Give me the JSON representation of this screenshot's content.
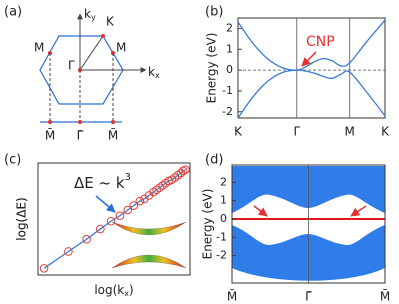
{
  "diagram": {
    "panel_label": "(a)",
    "kx": {
      "base": "k",
      "sub": "x"
    },
    "ky": {
      "base": "k",
      "sub": "y"
    },
    "points": [
      "Γ",
      "K",
      "M",
      "M"
    ],
    "projected": [
      "M̄",
      "Γ̄",
      "M̄"
    ]
  },
  "chart_data": [
    {
      "type": "line",
      "panel_label": "(b)",
      "ylabel": "Energy (eV)",
      "annotation": "CNP",
      "xlim": [
        0,
        2.5
      ],
      "xticks": [
        {
          "value": 0,
          "label": "K"
        },
        {
          "value": 1,
          "label": "Γ"
        },
        {
          "value": 1.9,
          "label": "M"
        },
        {
          "value": 2.5,
          "label": "K"
        }
      ],
      "ylim": [
        -2.3,
        2.5
      ],
      "yticks": [
        -2,
        -1,
        0,
        1,
        2
      ],
      "x": [
        0,
        0.25,
        0.5,
        0.75,
        1,
        1.15,
        1.3,
        1.45,
        1.6,
        1.75,
        1.9,
        2.2,
        2.5
      ],
      "series": [
        {
          "color": "#3a7bd5",
          "values": [
            2.3,
            1.3,
            0.55,
            0.12,
            0,
            0.15,
            0.4,
            0.55,
            0.45,
            0.2,
            0.35,
            1.4,
            2.4
          ]
        },
        {
          "color": "#3a7bd5",
          "values": [
            -2.3,
            -1.3,
            -0.55,
            -0.12,
            0,
            -0.05,
            -0.15,
            -0.3,
            -0.4,
            -0.2,
            -0.1,
            -1.1,
            -2.2
          ]
        }
      ]
    },
    {
      "type": "scatter",
      "panel_label": "(c)",
      "xlabel": [
        "log(k",
        "x",
        ")"
      ],
      "ylabel": "log(ΔE)",
      "annotation": [
        "ΔE ~ k",
        "3"
      ],
      "xlim": [
        0,
        1
      ],
      "ylim": [
        0,
        1
      ],
      "color": "#e0403a",
      "line_color": "#3a7bd5",
      "x": [
        0.04,
        0.2,
        0.32,
        0.41,
        0.48,
        0.54,
        0.59,
        0.63,
        0.67,
        0.7,
        0.73,
        0.76,
        0.78,
        0.8,
        0.82,
        0.84,
        0.86,
        0.88,
        0.9,
        0.92,
        0.94,
        0.955,
        0.97
      ],
      "values": [
        0.06,
        0.21,
        0.32,
        0.41,
        0.48,
        0.53,
        0.58,
        0.62,
        0.66,
        0.68,
        0.71,
        0.74,
        0.76,
        0.78,
        0.8,
        0.82,
        0.84,
        0.85,
        0.87,
        0.89,
        0.91,
        0.93,
        0.94
      ]
    },
    {
      "type": "band",
      "panel_label": "(d)",
      "ylabel": "Energy (eV)",
      "xlim": [
        0,
        2
      ],
      "xticks": [
        {
          "value": 0,
          "label": "M̄"
        },
        {
          "value": 1,
          "label": "Γ̄"
        },
        {
          "value": 2,
          "label": "M̄"
        }
      ],
      "ylim": [
        -3.5,
        2.95
      ],
      "yticks": [
        -2,
        -1,
        0,
        1,
        2
      ]
    }
  ]
}
